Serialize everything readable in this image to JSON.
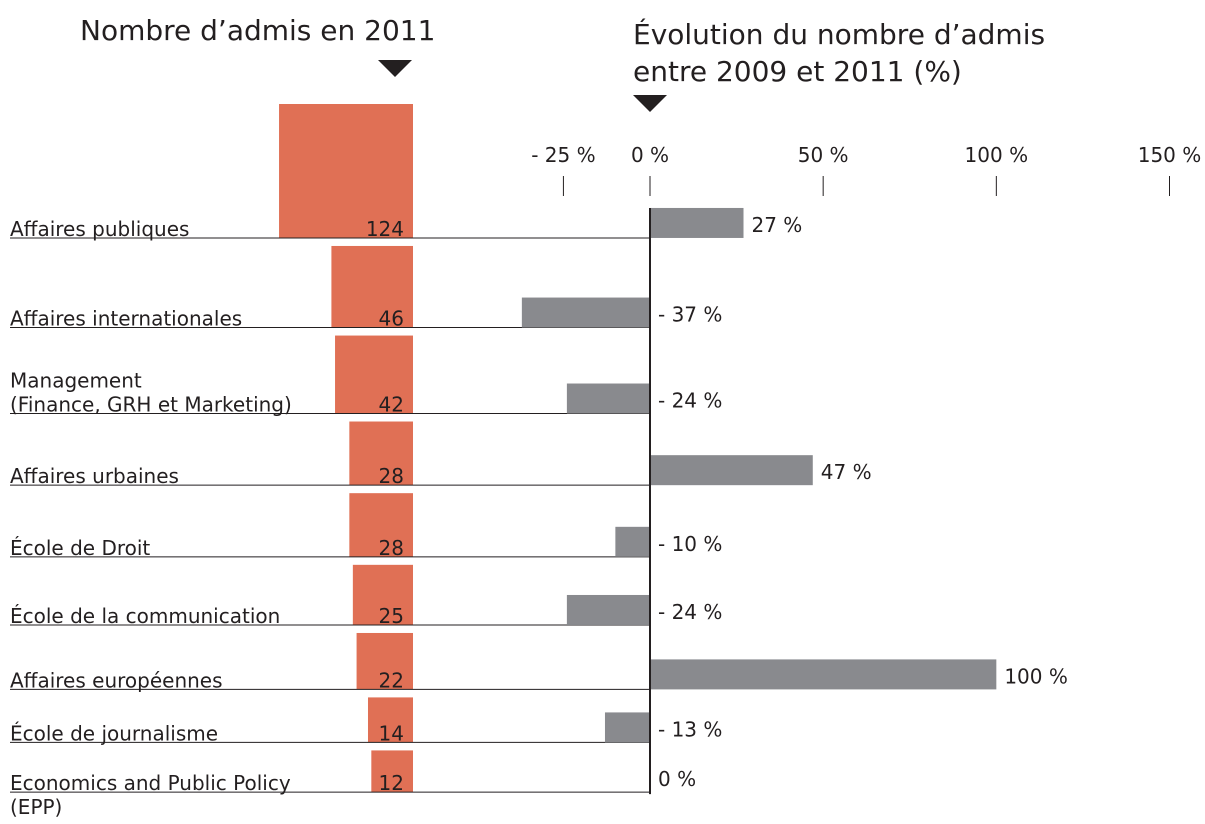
{
  "chart_data": [
    {
      "type": "square",
      "title": "Nombre d’admis en 2011",
      "color": "#e07055",
      "categories": [
        "Affaires publiques",
        "Affaires internationales",
        "Management\n(Finance, GRH et Marketing)",
        "Affaires urbaines",
        "École de Droit",
        "École de la communication",
        "Affaires européennes",
        "École de journalisme",
        "Economics and Public Policy\n(EPP)"
      ],
      "values": [
        124,
        46,
        42,
        28,
        28,
        25,
        22,
        14,
        12
      ]
    },
    {
      "type": "hbar",
      "title": "Évolution du nombre d’admis\nentre 2009 et 2011 (%)",
      "color": "#898a8e",
      "values": [
        27,
        -37,
        -24,
        47,
        -10,
        -24,
        100,
        -13,
        0
      ],
      "value_labels": [
        "27 %",
        "- 37 %",
        "- 24 %",
        "47 %",
        "- 10 %",
        "- 24 %",
        "100 %",
        "- 13 %",
        "0 %"
      ],
      "xlim": [
        -40,
        150
      ],
      "xticks": [
        {
          "value": -25,
          "label": "- 25 %"
        },
        {
          "value": 0,
          "label": "0 %"
        },
        {
          "value": 50,
          "label": "50 %"
        },
        {
          "value": 100,
          "label": "100 %"
        },
        {
          "value": 150,
          "label": "150 %"
        }
      ]
    }
  ]
}
